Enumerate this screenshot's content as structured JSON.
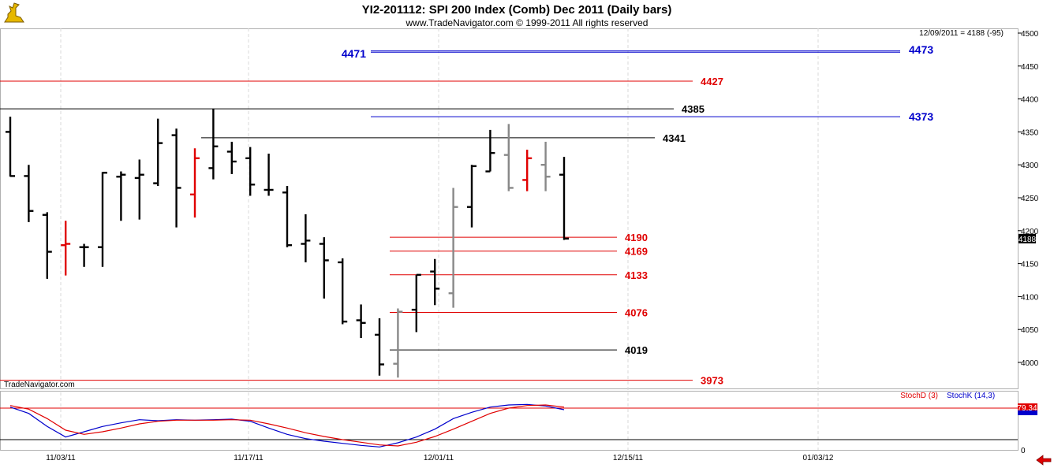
{
  "header": {
    "title": "YI2-201112:  SPI 200 Index (Comb) Dec 2011  (Daily bars)",
    "copyright": "www.TradeNavigator.com © 1999-2011 All rights reserved",
    "last_bar_info": "12/09/2011 = 4188 (-95)",
    "brand": "TradeNavigator.com",
    "logo_icon": "trade-navigator-logo-icon"
  },
  "chart_data": {
    "type": "ohlc",
    "y_ticks": [
      4000,
      4050,
      4100,
      4150,
      4200,
      4250,
      4300,
      4350,
      4400,
      4450,
      4500
    ],
    "ylim": [
      3965,
      4505
    ],
    "x_tick_labels": [
      "11/03/11",
      "11/17/11",
      "12/01/11",
      "12/15/11",
      "01/03/12"
    ],
    "last_price": "4188",
    "bars": [
      {
        "o": 4350,
        "h": 4373,
        "l": 4282,
        "c": 4283,
        "color": "#000000"
      },
      {
        "o": 4283,
        "h": 4300,
        "l": 4213,
        "c": 4230,
        "color": "#000000"
      },
      {
        "o": 4224,
        "h": 4228,
        "l": 4127,
        "c": 4168,
        "color": "#000000"
      },
      {
        "o": 4178,
        "h": 4215,
        "l": 4132,
        "c": 4180,
        "color": "#e00000"
      },
      {
        "o": 4175,
        "h": 4180,
        "l": 4145,
        "c": 4175,
        "color": "#000000"
      },
      {
        "o": 4175,
        "h": 4289,
        "l": 4145,
        "c": 4288,
        "color": "#000000"
      },
      {
        "o": 4282,
        "h": 4290,
        "l": 4215,
        "c": 4285,
        "color": "#000000"
      },
      {
        "o": 4280,
        "h": 4308,
        "l": 4217,
        "c": 4285,
        "color": "#000000"
      },
      {
        "o": 4272,
        "h": 4370,
        "l": 4268,
        "c": 4333,
        "color": "#000000"
      },
      {
        "o": 4345,
        "h": 4355,
        "l": 4205,
        "c": 4265,
        "color": "#000000"
      },
      {
        "o": 4255,
        "h": 4325,
        "l": 4220,
        "c": 4310,
        "color": "#e00000"
      },
      {
        "o": 4295,
        "h": 4385,
        "l": 4278,
        "c": 4328,
        "color": "#000000"
      },
      {
        "o": 4320,
        "h": 4335,
        "l": 4286,
        "c": 4305,
        "color": "#000000"
      },
      {
        "o": 4310,
        "h": 4327,
        "l": 4253,
        "c": 4270,
        "color": "#000000"
      },
      {
        "o": 4262,
        "h": 4317,
        "l": 4253,
        "c": 4262,
        "color": "#000000"
      },
      {
        "o": 4258,
        "h": 4268,
        "l": 4175,
        "c": 4178,
        "color": "#000000"
      },
      {
        "o": 4180,
        "h": 4225,
        "l": 4152,
        "c": 4185,
        "color": "#000000"
      },
      {
        "o": 4180,
        "h": 4190,
        "l": 4097,
        "c": 4155,
        "color": "#000000"
      },
      {
        "o": 4152,
        "h": 4158,
        "l": 4058,
        "c": 4062,
        "color": "#000000"
      },
      {
        "o": 4064,
        "h": 4088,
        "l": 4037,
        "c": 4060,
        "color": "#000000"
      },
      {
        "o": 4042,
        "h": 4067,
        "l": 3980,
        "c": 3997,
        "color": "#000000"
      },
      {
        "o": 3998,
        "h": 4082,
        "l": 3977,
        "c": 4077,
        "color": "#888888"
      },
      {
        "o": 4080,
        "h": 4133,
        "l": 4046,
        "c": 4133,
        "color": "#000000"
      },
      {
        "o": 4138,
        "h": 4157,
        "l": 4087,
        "c": 4112,
        "color": "#000000"
      },
      {
        "o": 4105,
        "h": 4265,
        "l": 4083,
        "c": 4236,
        "color": "#888888"
      },
      {
        "o": 4236,
        "h": 4300,
        "l": 4205,
        "c": 4298,
        "color": "#000000"
      },
      {
        "o": 4290,
        "h": 4353,
        "l": 4290,
        "c": 4318,
        "color": "#000000"
      },
      {
        "o": 4315,
        "h": 4362,
        "l": 4260,
        "c": 4265,
        "color": "#888888"
      },
      {
        "o": 4277,
        "h": 4323,
        "l": 4260,
        "c": 4310,
        "color": "#e00000"
      },
      {
        "o": 4300,
        "h": 4335,
        "l": 4260,
        "c": 4282,
        "color": "#888888"
      },
      {
        "o": 4285,
        "h": 4312,
        "l": 4186,
        "c": 4188,
        "color": "#000000"
      }
    ],
    "levels": [
      {
        "label": "4471",
        "value": 4471,
        "color": "#0000cc"
      },
      {
        "label": "4473",
        "value": 4473,
        "color": "#0000cc"
      },
      {
        "label": "4427",
        "value": 4427,
        "color": "#e00000"
      },
      {
        "label": "4385",
        "value": 4385,
        "color": "#000000"
      },
      {
        "label": "4373",
        "value": 4373,
        "color": "#0000cc"
      },
      {
        "label": "4341",
        "value": 4341,
        "color": "#000000"
      },
      {
        "label": "4190",
        "value": 4190,
        "color": "#e00000"
      },
      {
        "label": "4169",
        "value": 4169,
        "color": "#e00000"
      },
      {
        "label": "4133",
        "value": 4133,
        "color": "#e00000"
      },
      {
        "label": "4076",
        "value": 4076,
        "color": "#e00000"
      },
      {
        "label": "4019",
        "value": 4019,
        "color": "#000000"
      },
      {
        "label": "3973",
        "value": 3973,
        "color": "#e00000"
      }
    ],
    "stochastic": {
      "legend_d": "StochD (3)",
      "legend_k": "StochK (14,3)",
      "last_value": "79.34",
      "axis_zero": "0",
      "ylim": [
        0,
        100
      ],
      "overbought": 80,
      "oversold": 20,
      "k": [
        82,
        70,
        45,
        25,
        35,
        45,
        52,
        58,
        56,
        58,
        57,
        58,
        59,
        55,
        42,
        30,
        22,
        17,
        13,
        9,
        6,
        14,
        25,
        40,
        60,
        72,
        82,
        86,
        87,
        84,
        77
      ],
      "d": [
        85,
        78,
        60,
        38,
        30,
        35,
        42,
        50,
        55,
        57,
        57,
        57,
        58,
        57,
        50,
        42,
        33,
        26,
        20,
        15,
        10,
        8,
        15,
        26,
        40,
        55,
        70,
        80,
        85,
        86,
        82
      ]
    }
  }
}
